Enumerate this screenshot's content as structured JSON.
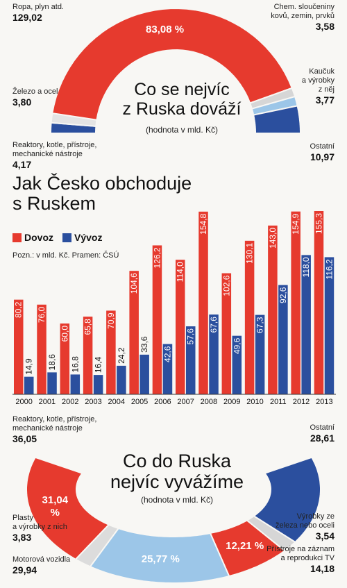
{
  "chart_data": [
    {
      "type": "donut",
      "title": "Co se nejvíc\nz Ruska dováží",
      "subtitle": "(hodnota v mld. Kč)",
      "categories": [
        "Reaktory, kotle, přístroje,\nmechanické nástroje",
        "Železo a ocel",
        "Ropa, plyn atd.",
        "Chem. sloučeniny\nkovů, zemin, prvků",
        "Kaučuk\na výrobky\nz něj",
        "Ostatní"
      ],
      "values": [
        4.17,
        3.8,
        129.02,
        3.58,
        3.77,
        10.97
      ],
      "value_labels": [
        "4,17",
        "3,80",
        "129,02",
        "3,58",
        "3,77",
        "10,97"
      ],
      "share_labels": [
        null,
        null,
        "83,08 %",
        null,
        null,
        null
      ],
      "colors": [
        "#2b4f9e",
        "#e4e4e4",
        "#e63a2e",
        "#d6d6d6",
        "#9cc6e8",
        "#2b4f9e"
      ]
    },
    {
      "type": "bar",
      "title": "Jak Česko obchoduje\ns Ruskem",
      "note": "Pozn.: v mld. Kč. Pramen: ČSÚ",
      "categories": [
        "2000",
        "2001",
        "2002",
        "2003",
        "2004",
        "2005",
        "2006",
        "2007",
        "2008",
        "2009",
        "2010",
        "2011",
        "2012",
        "2013"
      ],
      "ylim": [
        0,
        160
      ],
      "series": [
        {
          "name": "Dovoz",
          "color": "#e63a2e",
          "values": [
            80.2,
            76.0,
            60.0,
            65.8,
            70.9,
            104.6,
            126.2,
            114.0,
            154.8,
            102.6,
            130.1,
            143.0,
            154.9,
            155.3
          ],
          "value_labels": [
            "80,2",
            "76,0",
            "60,0",
            "65,8",
            "70,9",
            "104,6",
            "126,2",
            "114,0",
            "154,8",
            "102,6",
            "130,1",
            "143,0",
            "154,9",
            "155,3"
          ]
        },
        {
          "name": "Vývoz",
          "color": "#2b4f9e",
          "values": [
            14.9,
            18.6,
            16.8,
            16.4,
            24.2,
            33.6,
            42.6,
            57.6,
            67.6,
            49.6,
            67.3,
            92.6,
            118.0,
            116.2
          ],
          "value_labels": [
            "14,9",
            "18,6",
            "16,8",
            "16,4",
            "24,2",
            "33,6",
            "42,6",
            "57,6",
            "67,6",
            "49,6",
            "67,3",
            "92,6",
            "118,0",
            "116,2"
          ]
        }
      ]
    },
    {
      "type": "donut",
      "title": "Co do Ruska\nnejvíc vyvážíme",
      "subtitle": "(hodnota v mld. Kč)",
      "categories": [
        "Reaktory, kotle, přístroje,\nmechanické nástroje",
        "Plasty\na výrobky z nich",
        "Motorová vozidla",
        "Přístroje na záznam\na reprodukci TV",
        "Výrobky ze\nželeza nebo oceli",
        "Ostatní"
      ],
      "values": [
        36.05,
        3.83,
        29.94,
        14.18,
        3.54,
        28.61
      ],
      "value_labels": [
        "36,05",
        "3,83",
        "29,94",
        "14,18",
        "3,54",
        "28,61"
      ],
      "share_labels": [
        "31,04 %",
        null,
        "25,77 %",
        "12,21 %",
        null,
        null
      ],
      "colors": [
        "#e63a2e",
        "#dcdcdc",
        "#9cc6e8",
        "#e63a2e",
        "#d6d6d6",
        "#2b4f9e"
      ]
    }
  ]
}
